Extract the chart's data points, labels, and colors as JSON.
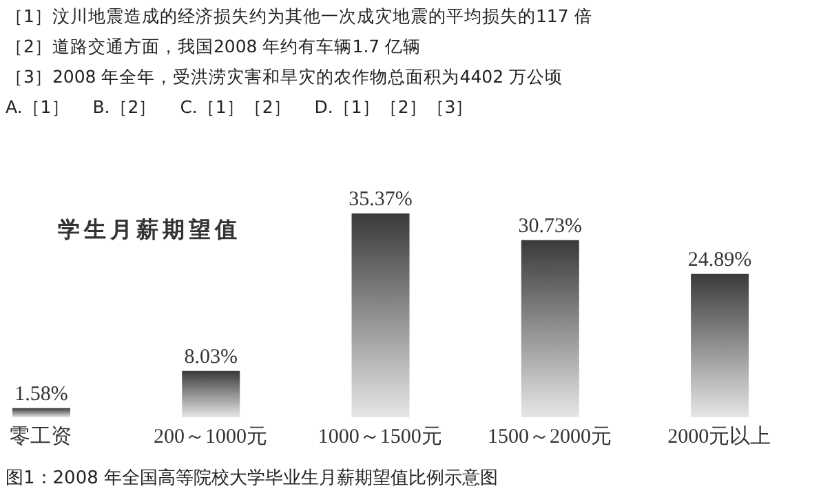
{
  "chart_data": {
    "type": "bar",
    "title": "学生月薪期望值",
    "categories": [
      "零工资",
      "200～1000元",
      "1000～1500元",
      "1500～2000元",
      "2000元以上"
    ],
    "values": [
      1.58,
      8.03,
      35.37,
      30.73,
      24.89
    ],
    "value_labels": [
      "1.58%",
      "8.03%",
      "35.37%",
      "30.73%",
      "24.89%"
    ],
    "color": "#3a3a3a",
    "annotations": [
      "［1］汶川地震造成的经济损失约为其他一次成灾地震的平均损失的117 倍",
      "［2］道路交通方面，我国2008 年约有车辆1.7 亿辆",
      "［3］2008 年全年，受洪涝灾害和旱灾的农作物总面积为4402 万公顷",
      "A.［1］　 B.［2］　 C.［1］［2］　 D.［1］［2］［3］",
      "图1：2008 年全国高等院校大学毕业生月薪期望值比例示意图"
    ]
  }
}
